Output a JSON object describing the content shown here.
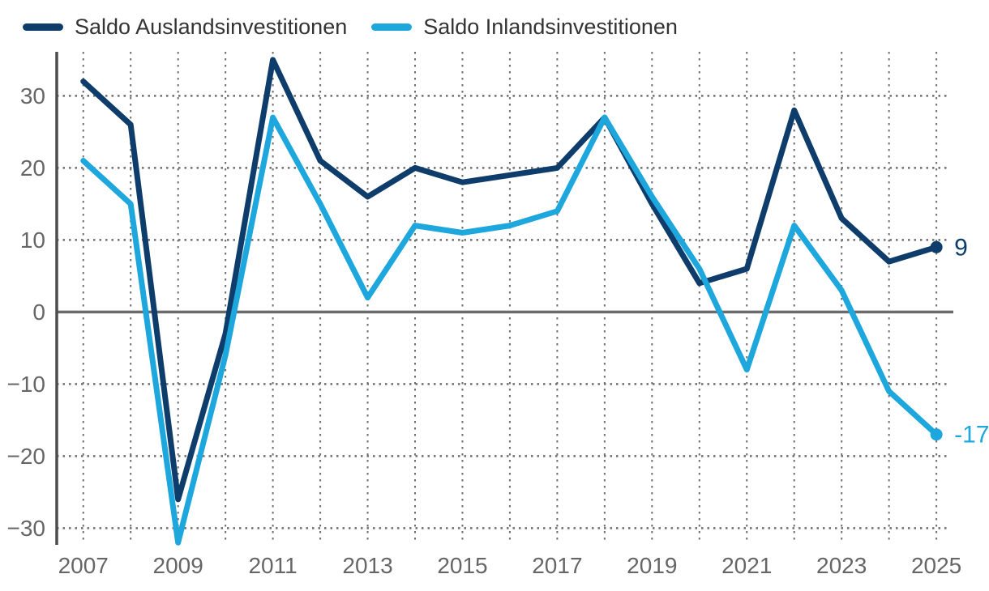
{
  "legend": {
    "items": [
      {
        "label": "Saldo Auslandsinvestitionen",
        "color": "#0e3d6c"
      },
      {
        "label": "Saldo Inlandsinvestitionen",
        "color": "#1ea7dd"
      }
    ]
  },
  "chart_data": {
    "type": "line",
    "title": "",
    "xlabel": "",
    "ylabel": "",
    "x": [
      2007,
      2008,
      2009,
      2010,
      2011,
      2012,
      2013,
      2014,
      2015,
      2016,
      2017,
      2018,
      2019,
      2020,
      2021,
      2022,
      2023,
      2024,
      2025
    ],
    "series": [
      {
        "name": "Saldo Auslandsinvestitionen",
        "color": "#0e3d6c",
        "values": [
          32,
          26,
          -26,
          -3,
          35,
          21,
          16,
          20,
          18,
          19,
          20,
          27,
          15,
          4,
          6,
          28,
          13,
          7,
          9
        ],
        "end_label": "9"
      },
      {
        "name": "Saldo Inlandsinvestitionen",
        "color": "#1ea7dd",
        "values": [
          21,
          15,
          -32,
          -6,
          27,
          15,
          2,
          12,
          11,
          12,
          14,
          27,
          16,
          6,
          -8,
          12,
          3,
          -11,
          -17
        ],
        "end_label": "-17"
      }
    ],
    "y_ticks": [
      30,
      20,
      10,
      0,
      -10,
      -20,
      -30
    ],
    "y_tick_labels": [
      "30",
      "20",
      "10",
      "0",
      "−10",
      "−20",
      "−30"
    ],
    "x_ticks": [
      2007,
      2009,
      2011,
      2013,
      2015,
      2017,
      2019,
      2021,
      2023,
      2025
    ],
    "x_grid_every_year": true,
    "ylim": [
      -32.2,
      36.0
    ],
    "xlim": [
      2006.44,
      2025.34
    ],
    "grid": "dotted gray gridlines on both axes, solid gray zero line, left axis line only",
    "legend_position": "top-left",
    "style": {
      "axis_color": "#4d4d4d",
      "zero_line_color": "#6b6b6b",
      "grid_color": "#6e6e6e",
      "tick_label_color": "#666666",
      "line_width": 7,
      "end_dot_radius": 7.5
    }
  }
}
